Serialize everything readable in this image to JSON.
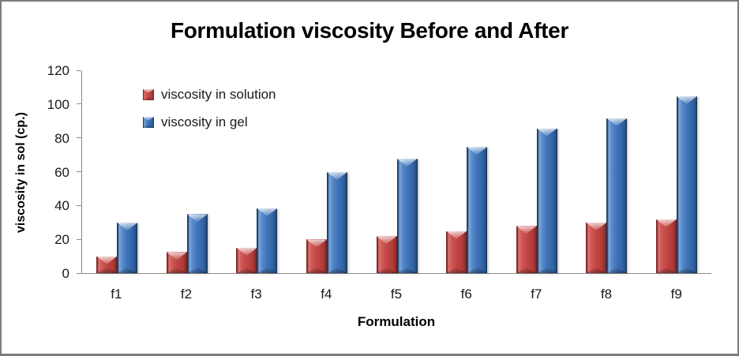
{
  "chart_data": {
    "type": "bar",
    "title": "Formulation viscosity Before and After",
    "categories": [
      "f1",
      "f2",
      "f3",
      "f4",
      "f5",
      "f6",
      "f7",
      "f8",
      "f9"
    ],
    "series": [
      {
        "name": "viscosity in solution",
        "color": "#c0504d",
        "values": [
          10,
          12.5,
          15,
          20,
          22,
          25,
          28,
          30,
          32
        ]
      },
      {
        "name": "viscosity in gel",
        "color": "#4f81bd",
        "values": [
          30,
          35,
          38.5,
          60,
          68,
          75,
          86,
          92,
          105
        ]
      }
    ],
    "xlabel": "Formulation",
    "ylabel": "viscosity in sol (cp.)",
    "ylim": [
      0,
      120
    ],
    "y_ticks": [
      0,
      20,
      40,
      60,
      80,
      100,
      120
    ],
    "grid": false,
    "legend_position": "top-left-inside"
  },
  "colors": {
    "axis": "#8c8c8c",
    "frame_border": "#7c7c7c",
    "background": "#ffffff",
    "text": "#000000",
    "series_solution": "#c0504d",
    "series_gel": "#4f81bd"
  }
}
